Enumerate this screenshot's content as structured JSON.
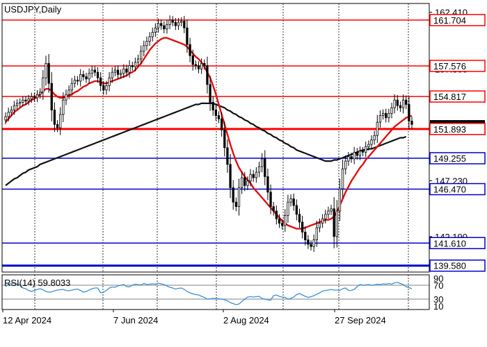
{
  "chart_data": [
    {
      "type": "candlestick",
      "title": "USDJPY,Daily",
      "x_ticks": [
        "12 Apr 2024",
        "7 Jun 2024",
        "2 Aug 2024",
        "27 Sep 2024"
      ],
      "y_ticks": [
        "162.410",
        "157.300",
        "152.190",
        "147.230",
        "142.190"
      ],
      "ylim": [
        139.0,
        163.2
      ],
      "grid": true,
      "levels": [
        {
          "value": 161.704,
          "label": "161.704",
          "color": "#ff0000"
        },
        {
          "value": 157.576,
          "label": "157.576",
          "color": "#ff0000"
        },
        {
          "value": 154.817,
          "label": "154.817",
          "color": "#ff0000"
        },
        {
          "value": 151.893,
          "label": "151.893",
          "color": "#ff0000"
        },
        {
          "value": 149.255,
          "label": "149.255",
          "color": "#0000cc"
        },
        {
          "value": 146.47,
          "label": "146.470",
          "color": "#0000cc"
        },
        {
          "value": 141.61,
          "label": "141.610",
          "color": "#0000cc"
        },
        {
          "value": 139.58,
          "label": "139.580",
          "color": "#0000cc"
        }
      ],
      "current_price": "152.190",
      "series": [
        {
          "name": "price",
          "values": [
            153.0,
            153.4,
            153.6,
            154.0,
            154.2,
            154.3,
            154.5,
            154.4,
            154.6,
            154.8,
            154.7,
            155.0,
            155.2,
            156.5,
            157.8,
            156.0,
            153.6,
            152.3,
            152.0,
            153.2,
            154.5,
            155.0,
            155.4,
            156.0,
            156.3,
            156.2,
            156.8,
            156.6,
            156.4,
            156.9,
            157.2,
            157.0,
            156.5,
            155.8,
            155.4,
            155.8,
            156.5,
            157.0,
            157.2,
            156.8,
            156.9,
            157.3,
            157.0,
            157.6,
            157.5,
            157.9,
            158.2,
            158.9,
            159.4,
            159.8,
            160.2,
            160.6,
            161.0,
            161.4,
            161.2,
            160.9,
            161.3,
            161.7,
            161.5,
            161.2,
            161.5,
            161.6,
            161.0,
            159.5,
            158.5,
            157.7,
            157.6,
            157.3,
            157.8,
            157.6,
            155.9,
            154.3,
            153.6,
            153.1,
            152.8,
            151.8,
            150.2,
            148.7,
            146.6,
            145.3,
            144.9,
            146.6,
            147.5,
            146.8,
            147.2,
            147.8,
            147.5,
            148.0,
            148.5,
            149.2,
            147.6,
            146.2,
            144.9,
            144.5,
            143.8,
            143.4,
            143.2,
            144.1,
            145.3,
            145.6,
            145.0,
            144.2,
            143.5,
            142.6,
            141.9,
            141.5,
            141.3,
            141.9,
            143.0,
            143.4,
            143.8,
            144.2,
            144.5,
            144.7,
            142.2,
            144.5,
            146.5,
            148.3,
            149.0,
            149.4,
            149.2,
            149.8,
            149.5,
            149.9,
            149.8,
            150.3,
            150.5,
            150.9,
            151.3,
            152.5,
            153.1,
            153.3,
            152.9,
            153.3,
            153.8,
            154.5,
            154.0,
            153.8,
            154.5,
            154.1,
            152.6,
            152.3
          ]
        },
        {
          "name": "ma-red",
          "values": [
            152.5,
            152.8,
            153.1,
            153.4,
            153.6,
            153.8,
            154.0,
            154.1,
            154.3,
            154.5,
            154.6,
            154.8,
            155.0,
            155.3,
            155.5,
            155.5,
            155.3,
            155.0,
            154.8,
            154.7,
            154.7,
            154.8,
            154.9,
            155.0,
            155.2,
            155.3,
            155.5,
            155.7,
            155.8,
            156.0,
            156.1,
            156.2,
            156.2,
            156.1,
            156.0,
            156.0,
            156.1,
            156.2,
            156.3,
            156.4,
            156.5,
            156.6,
            156.7,
            156.9,
            157.0,
            157.2,
            157.5,
            157.8,
            158.2,
            158.6,
            159.0,
            159.3,
            159.6,
            159.8,
            160.0,
            160.1,
            160.1,
            160.0,
            159.9,
            159.8,
            159.7,
            159.6,
            159.5,
            159.3,
            159.0,
            158.7,
            158.4,
            158.2,
            157.9,
            157.5,
            157.0,
            156.5,
            155.8,
            155.0,
            154.1,
            153.2,
            152.3,
            151.4,
            150.5,
            149.7,
            149.0,
            148.4,
            148.0,
            147.6,
            147.3,
            147.0,
            146.6,
            146.3,
            146.0,
            145.7,
            145.4,
            145.1,
            144.8,
            144.5,
            144.2,
            143.9,
            143.6,
            143.4,
            143.2,
            143.1,
            143.0,
            142.9,
            142.9,
            142.9,
            143.0,
            143.1,
            143.2,
            143.3,
            143.4,
            143.5,
            143.6,
            143.7,
            143.7,
            143.8,
            144.0,
            144.4,
            145.0,
            145.6,
            146.2,
            146.7,
            147.2,
            147.6,
            148.0,
            148.4,
            148.7,
            149.1,
            149.4,
            149.7,
            150.0,
            150.3,
            150.6,
            150.9,
            151.2,
            151.5,
            151.8,
            152.1,
            152.3,
            152.5,
            152.7,
            152.9,
            153.0,
            153.1
          ]
        },
        {
          "name": "ma-black",
          "values": [
            146.8,
            147.0,
            147.2,
            147.4,
            147.5,
            147.7,
            147.9,
            148.0,
            148.2,
            148.3,
            148.4,
            148.5,
            148.7,
            148.8,
            148.9,
            149.0,
            149.1,
            149.2,
            149.3,
            149.4,
            149.5,
            149.6,
            149.7,
            149.8,
            149.9,
            150.0,
            150.1,
            150.2,
            150.3,
            150.4,
            150.5,
            150.6,
            150.7,
            150.8,
            150.9,
            151.0,
            151.1,
            151.2,
            151.3,
            151.4,
            151.5,
            151.6,
            151.7,
            151.8,
            151.9,
            152.0,
            152.1,
            152.2,
            152.3,
            152.4,
            152.5,
            152.6,
            152.7,
            152.8,
            152.9,
            153.0,
            153.1,
            153.2,
            153.3,
            153.4,
            153.5,
            153.6,
            153.7,
            153.8,
            153.9,
            154.0,
            154.1,
            154.1,
            154.2,
            154.2,
            154.2,
            154.2,
            154.2,
            154.1,
            154.0,
            153.9,
            153.8,
            153.6,
            153.5,
            153.3,
            153.2,
            153.0,
            152.9,
            152.7,
            152.6,
            152.4,
            152.3,
            152.1,
            152.0,
            151.8,
            151.7,
            151.5,
            151.4,
            151.2,
            151.1,
            150.9,
            150.8,
            150.6,
            150.5,
            150.3,
            150.2,
            150.0,
            149.9,
            149.8,
            149.7,
            149.6,
            149.5,
            149.4,
            149.3,
            149.2,
            149.1,
            149.0,
            149.0,
            149.0,
            149.1,
            149.1,
            149.2,
            149.3,
            149.4,
            149.5,
            149.6,
            149.7,
            149.8,
            149.9,
            150.0,
            150.0,
            150.1,
            150.1,
            150.2,
            150.3,
            150.4,
            150.5,
            150.6,
            150.7,
            150.8,
            150.9,
            151.0,
            151.1,
            151.1,
            151.2
          ]
        }
      ]
    },
    {
      "type": "line",
      "title": "RSI(14) 59.8033",
      "y_ticks": [
        "90",
        "70",
        "30",
        "10"
      ],
      "ylim": [
        0,
        100
      ],
      "levels": [
        70,
        30
      ],
      "series": [
        {
          "name": "rsi",
          "values": [
            66,
            72,
            75,
            76,
            73,
            71,
            62,
            60,
            55,
            52,
            55,
            58,
            60,
            57,
            52,
            50,
            51,
            54,
            56,
            57,
            58,
            55,
            54,
            56,
            58,
            59,
            55,
            50,
            52,
            56,
            60,
            62,
            62,
            48,
            50,
            55,
            62,
            65,
            64,
            68,
            70,
            72,
            66,
            65,
            70,
            73,
            72,
            71,
            75,
            72,
            73,
            74,
            73,
            76,
            74,
            72,
            68,
            64,
            62,
            59,
            61,
            62,
            58,
            52,
            48,
            45,
            43,
            42,
            38,
            35,
            30,
            31,
            32,
            32,
            31,
            30,
            28,
            25,
            20,
            17,
            14,
            16,
            23,
            30,
            36,
            37,
            36,
            37,
            38,
            32,
            30,
            28,
            27,
            40,
            42,
            38,
            36,
            35,
            30,
            32,
            36,
            43,
            46,
            42,
            38,
            35,
            37,
            40,
            44,
            48,
            53,
            55,
            56,
            58,
            56,
            56,
            55,
            60,
            62,
            55,
            55,
            58,
            66,
            72,
            70,
            71,
            72,
            70,
            71,
            73,
            72,
            74,
            73,
            75,
            73,
            77,
            78,
            75,
            72,
            66,
            63,
            60
          ]
        }
      ]
    }
  ]
}
